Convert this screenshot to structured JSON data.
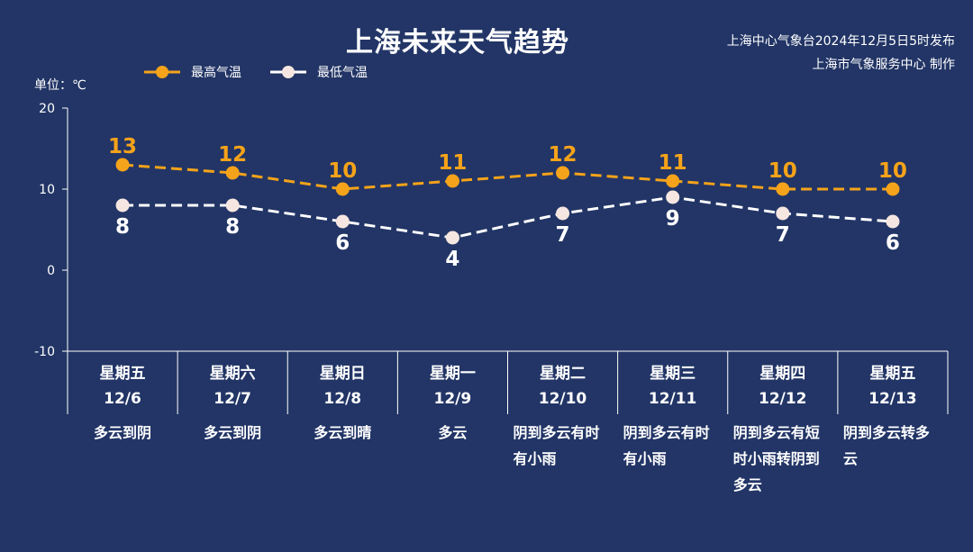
{
  "header": {
    "title": "上海未来天气趋势",
    "issuer_line1": "上海中心气象台2024年12月5日5时发布",
    "issuer_line2": "上海市气象服务中心 制作"
  },
  "unit_label": "单位：℃",
  "legend": {
    "high_label": "最高气温",
    "low_label": "最低气温"
  },
  "colors": {
    "background": "#223566",
    "high": "#F5A31A",
    "low": "#FFFFFF",
    "low_marker": "#F6E6E1",
    "axis": "#FFFFFF"
  },
  "forecast": [
    {
      "day": "星期五",
      "date": "12/6",
      "weather": "多云到阴"
    },
    {
      "day": "星期六",
      "date": "12/7",
      "weather": "多云到阴"
    },
    {
      "day": "星期日",
      "date": "12/8",
      "weather": "多云到晴"
    },
    {
      "day": "星期一",
      "date": "12/9",
      "weather": "多云"
    },
    {
      "day": "星期二",
      "date": "12/10",
      "weather": "阴到多云有时有小雨"
    },
    {
      "day": "星期三",
      "date": "12/11",
      "weather": "阴到多云有时有小雨"
    },
    {
      "day": "星期四",
      "date": "12/12",
      "weather": "阴到多云有短时小雨转阴到多云"
    },
    {
      "day": "星期五",
      "date": "12/13",
      "weather": "阴到多云转多云"
    }
  ],
  "chart_data": {
    "type": "line",
    "title": "上海未来天气趋势",
    "ylabel": "单位：℃",
    "ylim": [
      -10,
      20
    ],
    "yticks": [
      20,
      10,
      0,
      -10
    ],
    "categories": [
      "12/6",
      "12/7",
      "12/8",
      "12/9",
      "12/10",
      "12/11",
      "12/12",
      "12/13"
    ],
    "series": [
      {
        "name": "最高气温",
        "values": [
          13,
          12,
          10,
          11,
          12,
          11,
          10,
          10
        ]
      },
      {
        "name": "最低气温",
        "values": [
          8,
          8,
          6,
          4,
          7,
          9,
          7,
          6
        ]
      }
    ],
    "grid": false,
    "legend_position": "top-left"
  }
}
